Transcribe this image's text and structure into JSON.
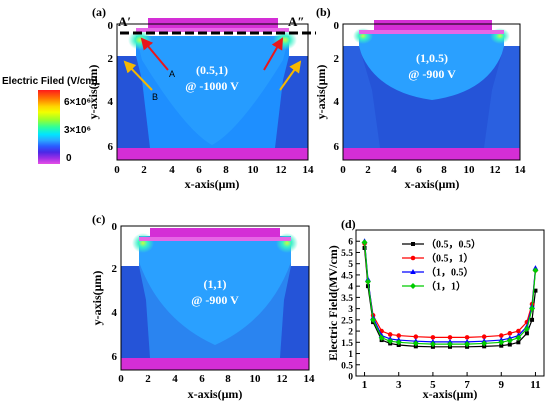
{
  "colorbar": {
    "title": "Electric Filed (V/cm)",
    "ticks": [
      "6×10⁶",
      "3×10⁶",
      "0"
    ],
    "colors": [
      "#ff1a1a",
      "#ff7a00",
      "#ffd400",
      "#f2ff00",
      "#9cff2a",
      "#2fff9a",
      "#00e5ff",
      "#2aa8ff",
      "#2a5cff",
      "#4b28e6",
      "#9b2ee6",
      "#e64fe6"
    ]
  },
  "contour_panels": [
    {
      "label": "(a)",
      "xlabel": "x-axis(μm)",
      "ylabel": "y-axis(μm)",
      "xticks": [
        "0",
        "2",
        "4",
        "6",
        "8",
        "10",
        "12",
        "14"
      ],
      "yticks": [
        "0",
        "2",
        "4",
        "6"
      ],
      "annotation": [
        "(0.5,1)",
        "@ -1000 V"
      ],
      "marks": {
        "a_prime": "A′",
        "a_dprime": "A″",
        "a": "A",
        "b": "B"
      }
    },
    {
      "label": "(b)",
      "xlabel": "x-axis(μm)",
      "ylabel": "y-axis(μm)",
      "xticks": [
        "0",
        "2",
        "4",
        "6",
        "8",
        "10",
        "12",
        "14"
      ],
      "yticks": [
        "0",
        "2",
        "4",
        "6"
      ],
      "annotation": [
        "(1,0.5)",
        "@ -900 V"
      ]
    },
    {
      "label": "(c)",
      "xlabel": "x-axis(μm)",
      "ylabel": "y-axis(μm)",
      "xticks": [
        "0",
        "2",
        "4",
        "6",
        "8",
        "10",
        "12",
        "14"
      ],
      "yticks": [
        "0",
        "2",
        "4",
        "6"
      ],
      "annotation": [
        "(1,1)",
        "@ -900 V"
      ]
    }
  ],
  "chart_data": {
    "type": "line",
    "label": "(d)",
    "xlabel": "x-axis(μm)",
    "ylabel": "Electric Field(MV/cm)",
    "xlim": [
      0.5,
      11.5
    ],
    "ylim": [
      0,
      6.5
    ],
    "xticks": [
      1,
      3,
      5,
      7,
      9,
      11
    ],
    "yticks": [
      0,
      0.5,
      1,
      1.5,
      2,
      2.5,
      3,
      3.5,
      4,
      4.5,
      5,
      5.5,
      6
    ],
    "legend_position": "top-right",
    "x": [
      1.0,
      1.2,
      1.5,
      2.0,
      2.5,
      3.0,
      4.0,
      5.0,
      6.0,
      7.0,
      8.0,
      9.0,
      9.5,
      10.0,
      10.5,
      10.8,
      11.0
    ],
    "series": [
      {
        "name": "（0.5，0.5）",
        "color": "#000000",
        "marker": "square",
        "values": [
          5.7,
          4.0,
          2.4,
          1.6,
          1.45,
          1.38,
          1.32,
          1.3,
          1.3,
          1.3,
          1.32,
          1.35,
          1.4,
          1.5,
          1.9,
          2.5,
          3.8
        ]
      },
      {
        "name": "（0.5，1）",
        "color": "#ff0000",
        "marker": "circle",
        "values": [
          5.9,
          4.2,
          2.7,
          2.0,
          1.85,
          1.8,
          1.75,
          1.72,
          1.72,
          1.72,
          1.75,
          1.8,
          1.9,
          2.0,
          2.4,
          3.2,
          4.7
        ]
      },
      {
        "name": "（1，0.5）",
        "color": "#0000ff",
        "marker": "triangle",
        "values": [
          6.0,
          4.3,
          2.6,
          1.8,
          1.65,
          1.6,
          1.55,
          1.52,
          1.52,
          1.52,
          1.55,
          1.6,
          1.68,
          1.8,
          2.2,
          3.1,
          4.8
        ]
      },
      {
        "name": "（1，1）",
        "color": "#00cc00",
        "marker": "diamond",
        "values": [
          5.95,
          4.2,
          2.5,
          1.7,
          1.55,
          1.5,
          1.45,
          1.42,
          1.42,
          1.42,
          1.45,
          1.5,
          1.58,
          1.7,
          2.1,
          3.0,
          4.7
        ]
      }
    ]
  }
}
